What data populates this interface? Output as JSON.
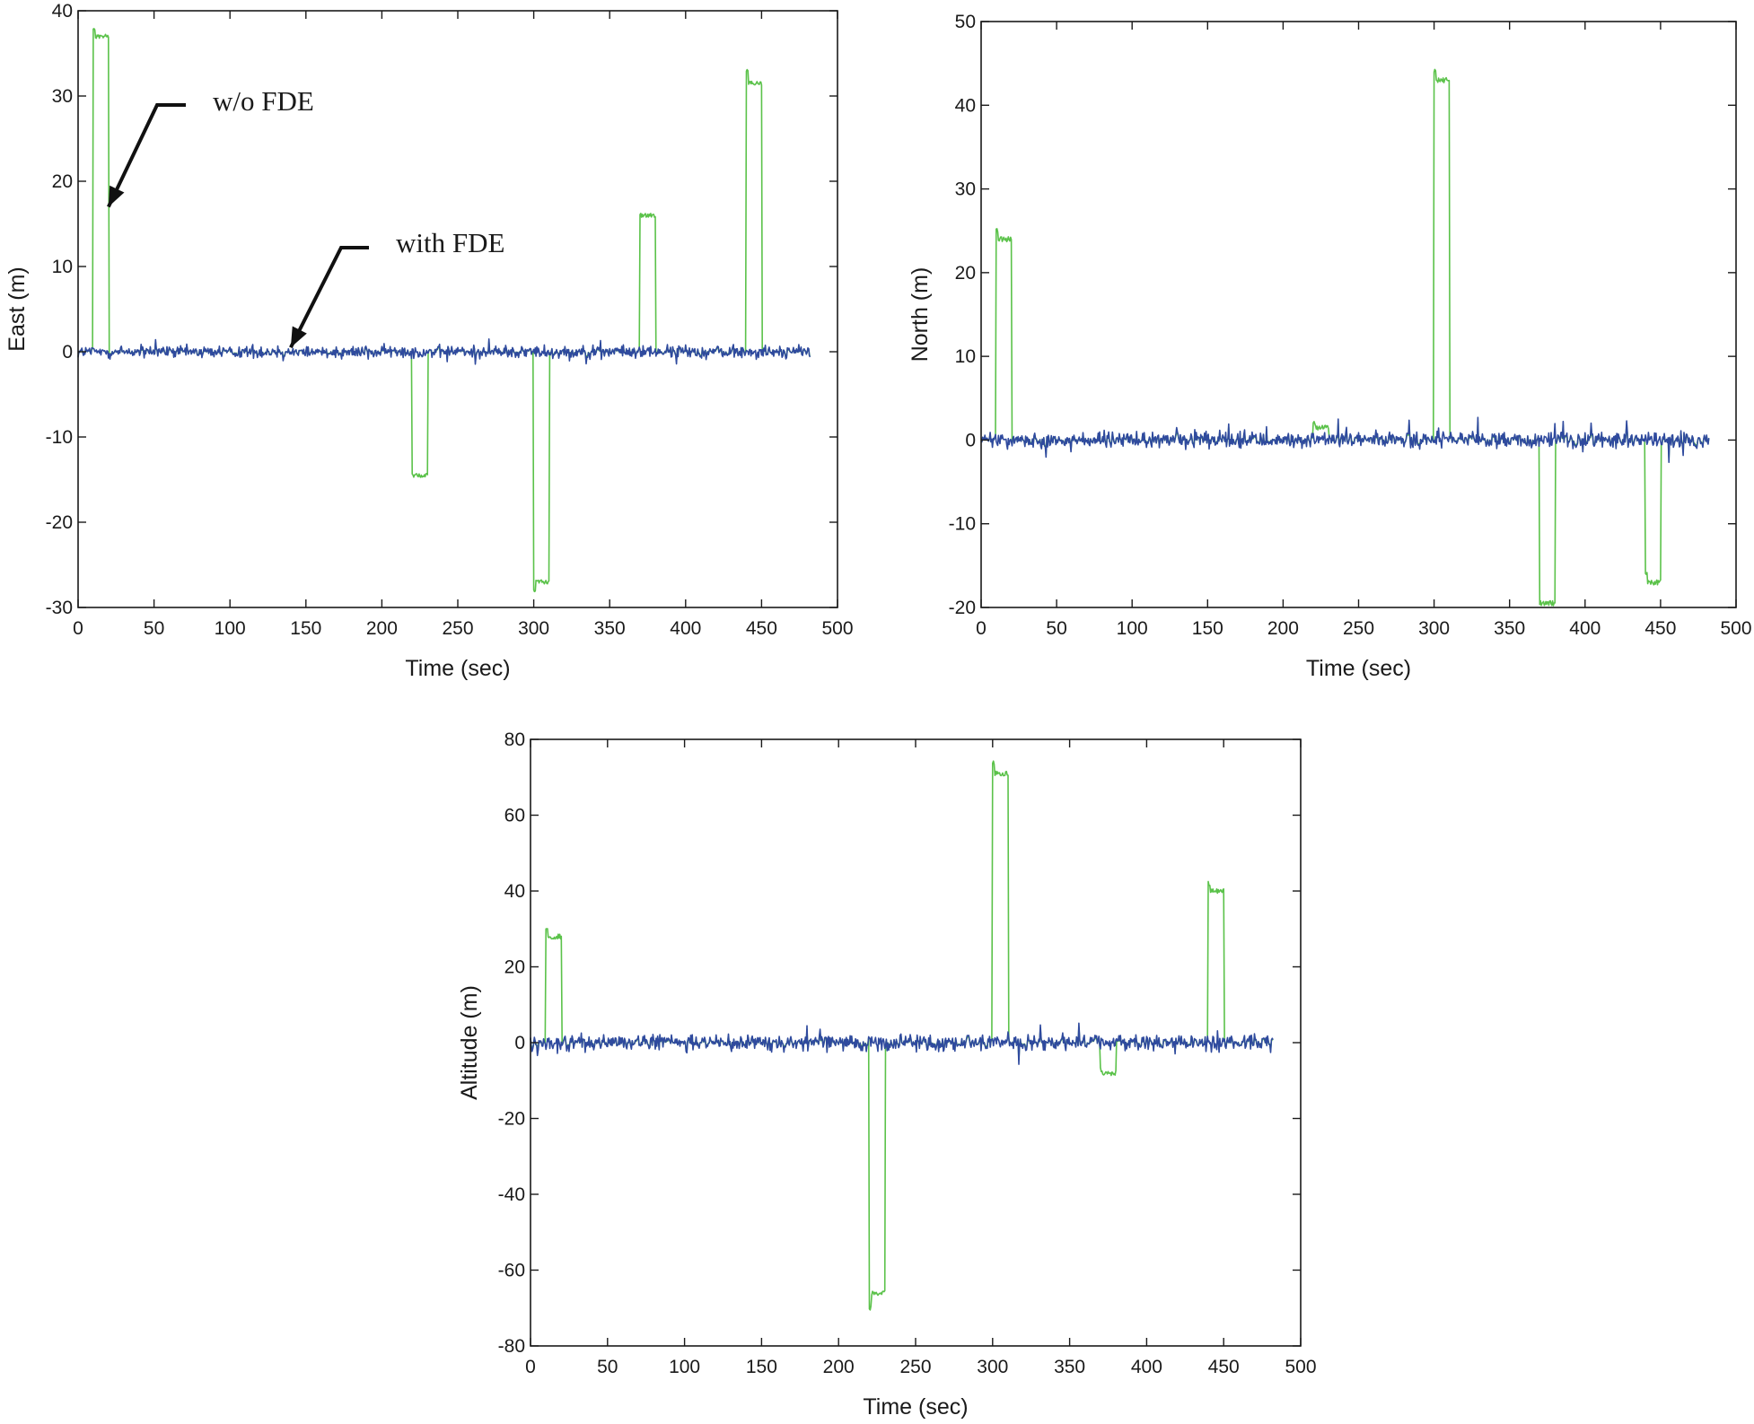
{
  "chart_data": [
    {
      "type": "line",
      "panel": "top-left",
      "xlabel": "Time (sec)",
      "ylabel": "East (m)",
      "xlim": [
        0,
        500
      ],
      "ylim": [
        -30,
        40
      ],
      "xticks": [
        0,
        50,
        100,
        150,
        200,
        250,
        300,
        350,
        400,
        450,
        500
      ],
      "yticks": [
        -30,
        -20,
        -10,
        0,
        10,
        20,
        30,
        40
      ],
      "x_end": 482,
      "noise_amplitude": 0.8,
      "series": [
        {
          "name": "w/o FDE",
          "color": "#5bc24a",
          "segments": [
            {
              "start": 10,
              "end": 20,
              "level": 38,
              "settle": 37
            },
            {
              "start": 220,
              "end": 230,
              "level": -14.5,
              "settle": -14.5
            },
            {
              "start": 300,
              "end": 310,
              "level": -28,
              "settle": -27
            },
            {
              "start": 370,
              "end": 380,
              "level": 16,
              "settle": 16
            },
            {
              "start": 440,
              "end": 450,
              "level": 33,
              "settle": 31.5
            }
          ]
        },
        {
          "name": "with FDE",
          "color": "#2f4a9e"
        }
      ],
      "annotations": [
        {
          "text": "w/o FDE",
          "anchor_x": 20,
          "anchor_y": 17
        },
        {
          "text": "with FDE",
          "anchor_x": 140,
          "anchor_y": 0.5
        }
      ]
    },
    {
      "type": "line",
      "panel": "top-right",
      "xlabel": "Time (sec)",
      "ylabel": "North (m)",
      "xlim": [
        0,
        500
      ],
      "ylim": [
        -20,
        50
      ],
      "xticks": [
        0,
        50,
        100,
        150,
        200,
        250,
        300,
        350,
        400,
        450,
        500
      ],
      "yticks": [
        -20,
        -10,
        0,
        10,
        20,
        30,
        40,
        50
      ],
      "x_end": 482,
      "noise_amplitude": 1.0,
      "series": [
        {
          "name": "w/o FDE",
          "color": "#5bc24a",
          "segments": [
            {
              "start": 10,
              "end": 20,
              "level": 25,
              "settle": 24
            },
            {
              "start": 220,
              "end": 230,
              "level": 2,
              "settle": 1.5
            },
            {
              "start": 300,
              "end": 310,
              "level": 44,
              "settle": 43
            },
            {
              "start": 370,
              "end": 380,
              "level": -19.5,
              "settle": -19.5
            },
            {
              "start": 440,
              "end": 450,
              "level": -16,
              "settle": -17
            }
          ]
        },
        {
          "name": "with FDE",
          "color": "#2f4a9e"
        }
      ]
    },
    {
      "type": "line",
      "panel": "bottom",
      "xlabel": "Time (sec)",
      "ylabel": "Altitude (m)",
      "xlim": [
        0,
        500
      ],
      "ylim": [
        -80,
        80
      ],
      "xticks": [
        0,
        50,
        100,
        150,
        200,
        250,
        300,
        350,
        400,
        450,
        500
      ],
      "yticks": [
        -80,
        -60,
        -40,
        -20,
        0,
        20,
        40,
        60,
        80
      ],
      "x_end": 482,
      "noise_amplitude": 2.2,
      "series": [
        {
          "name": "w/o FDE",
          "color": "#5bc24a",
          "segments": [
            {
              "start": 10,
              "end": 20,
              "level": 30,
              "settle": 28
            },
            {
              "start": 220,
              "end": 230,
              "level": -70,
              "settle": -66
            },
            {
              "start": 300,
              "end": 310,
              "level": 74,
              "settle": 71
            },
            {
              "start": 370,
              "end": 380,
              "level": -7,
              "settle": -8
            },
            {
              "start": 440,
              "end": 450,
              "level": 42,
              "settle": 40
            }
          ]
        },
        {
          "name": "with FDE",
          "color": "#2f4a9e"
        }
      ]
    }
  ]
}
